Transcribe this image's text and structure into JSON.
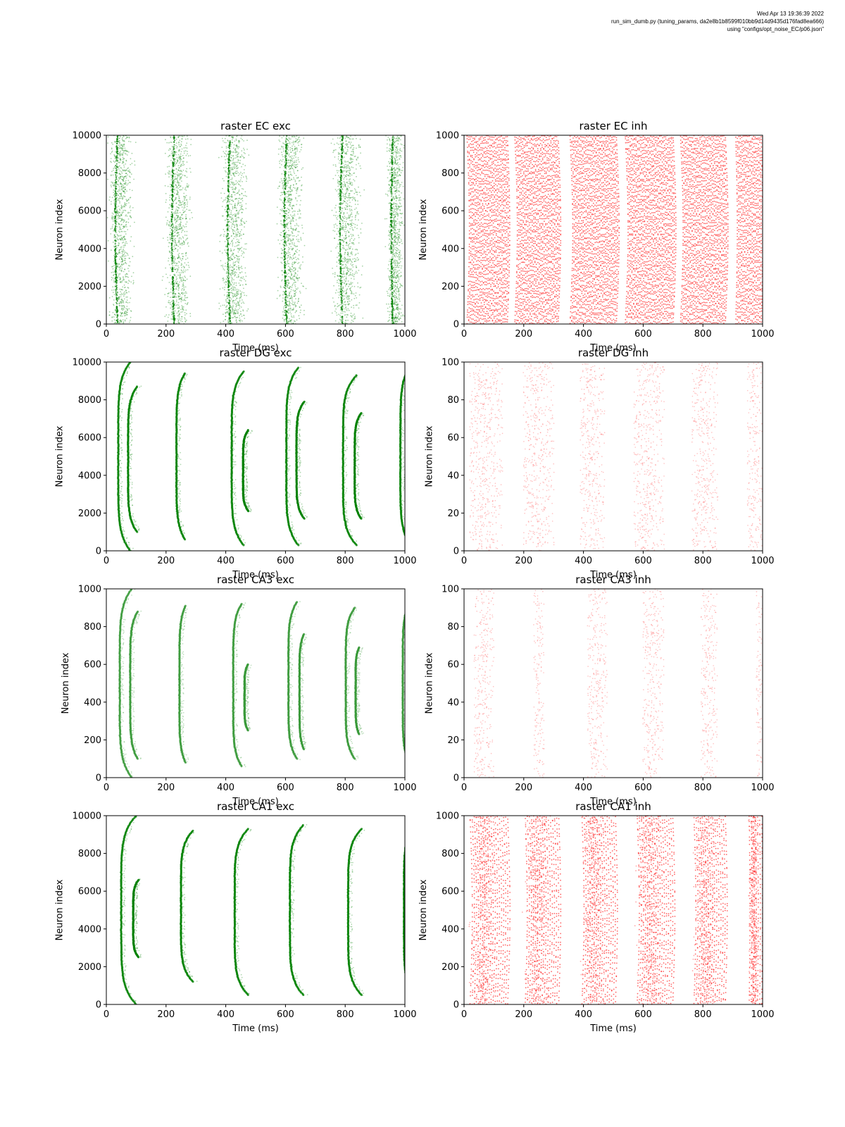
{
  "header": {
    "line1": "Wed Apr 13 19:36:39 2022",
    "line2": "run_sim_dumb.py (tuning_params, da2e8b1b8599f010bb9d14d9435d176fad8ea666)",
    "line3": "using \"configs/opt_noise_EC/p06.json\""
  },
  "chart_data": [
    {
      "type": "scatter",
      "title": "raster EC exc",
      "xlabel": "Time (ms)",
      "ylabel": "Neuron index",
      "xlim": [
        0,
        1000
      ],
      "ylim": [
        0,
        10000
      ],
      "xticks": [
        0,
        200,
        400,
        600,
        800,
        1000
      ],
      "yticks": [
        0,
        2000,
        4000,
        6000,
        8000,
        10000
      ],
      "color": "#008000",
      "pattern": "diffuse",
      "bursts": [
        [
          0,
          100
        ],
        [
          190,
          290
        ],
        [
          375,
          480
        ],
        [
          565,
          670
        ],
        [
          750,
          860
        ],
        [
          935,
          1000
        ]
      ]
    },
    {
      "type": "scatter",
      "title": "raster EC inh",
      "xlabel": "Time (ms)",
      "ylabel": "Neuron index",
      "xlim": [
        0,
        1000
      ],
      "ylim": [
        0,
        1000
      ],
      "xticks": [
        0,
        200,
        400,
        600,
        800,
        1000
      ],
      "yticks": [
        0,
        200,
        400,
        600,
        800,
        1000
      ],
      "color": "#ff0000",
      "pattern": "lines",
      "bursts": [
        [
          10,
          145
        ],
        [
          170,
          315
        ],
        [
          355,
          510
        ],
        [
          540,
          700
        ],
        [
          725,
          875
        ],
        [
          910,
          1000
        ]
      ]
    },
    {
      "type": "scatter",
      "title": "raster DG exc",
      "xlabel": "Time (ms)",
      "ylabel": "Neuron index",
      "xlim": [
        0,
        1000
      ],
      "ylim": [
        0,
        10000
      ],
      "xticks": [
        0,
        200,
        400,
        600,
        800,
        1000
      ],
      "yticks": [
        0,
        2000,
        4000,
        6000,
        8000,
        10000
      ],
      "color": "#008000",
      "pattern": "arcs",
      "arcs": [
        {
          "t": 40,
          "y0": 0,
          "y1": 10000,
          "w": 40
        },
        {
          "t": 73,
          "y0": 1000,
          "y1": 8700,
          "w": 30
        },
        {
          "t": 235,
          "y0": 600,
          "y1": 9400,
          "w": 28
        },
        {
          "t": 420,
          "y0": 300,
          "y1": 9500,
          "w": 40
        },
        {
          "t": 458,
          "y0": 2100,
          "y1": 6400,
          "w": 18
        },
        {
          "t": 603,
          "y0": 300,
          "y1": 9700,
          "w": 40
        },
        {
          "t": 637,
          "y0": 1700,
          "y1": 7900,
          "w": 26
        },
        {
          "t": 793,
          "y0": 300,
          "y1": 9300,
          "w": 45
        },
        {
          "t": 832,
          "y0": 1700,
          "y1": 7300,
          "w": 22
        },
        {
          "t": 985,
          "y0": 600,
          "y1": 9500,
          "w": 22
        }
      ]
    },
    {
      "type": "scatter",
      "title": "raster DG inh",
      "xlabel": "Time (ms)",
      "ylabel": "Neuron index",
      "xlim": [
        0,
        1000
      ],
      "ylim": [
        0,
        100
      ],
      "xticks": [
        0,
        200,
        400,
        600,
        800,
        1000
      ],
      "yticks": [
        0,
        20,
        40,
        60,
        80,
        100
      ],
      "color": "#ff8080",
      "pattern": "sparse",
      "bursts": [
        [
          20,
          130
        ],
        [
          200,
          300
        ],
        [
          390,
          470
        ],
        [
          570,
          670
        ],
        [
          765,
          850
        ],
        [
          950,
          1000
        ]
      ]
    },
    {
      "type": "scatter",
      "title": "raster CA3 exc",
      "xlabel": "Time (ms)",
      "ylabel": "Neuron index",
      "xlim": [
        0,
        1000
      ],
      "ylim": [
        0,
        1000
      ],
      "xticks": [
        0,
        200,
        400,
        600,
        800,
        1000
      ],
      "yticks": [
        0,
        200,
        400,
        600,
        800,
        1000
      ],
      "color": "#3a9a3a",
      "pattern": "arcs",
      "arcs": [
        {
          "t": 45,
          "y0": 0,
          "y1": 1000,
          "w": 40
        },
        {
          "t": 80,
          "y0": 100,
          "y1": 880,
          "w": 25
        },
        {
          "t": 245,
          "y0": 80,
          "y1": 910,
          "w": 20
        },
        {
          "t": 425,
          "y0": 60,
          "y1": 920,
          "w": 28
        },
        {
          "t": 463,
          "y0": 250,
          "y1": 600,
          "w": 12
        },
        {
          "t": 610,
          "y0": 100,
          "y1": 930,
          "w": 28
        },
        {
          "t": 647,
          "y0": 150,
          "y1": 760,
          "w": 15
        },
        {
          "t": 802,
          "y0": 100,
          "y1": 900,
          "w": 30
        },
        {
          "t": 835,
          "y0": 230,
          "y1": 690,
          "w": 12
        },
        {
          "t": 993,
          "y0": 100,
          "y1": 900,
          "w": 15
        }
      ]
    },
    {
      "type": "scatter",
      "title": "raster CA3 inh",
      "xlabel": "Time (ms)",
      "ylabel": "Neuron index",
      "xlim": [
        0,
        1000
      ],
      "ylim": [
        0,
        100
      ],
      "xticks": [
        0,
        200,
        400,
        600,
        800,
        1000
      ],
      "yticks": [
        0,
        20,
        40,
        60,
        80,
        100
      ],
      "color": "#ff8080",
      "pattern": "sparse",
      "bursts": [
        [
          35,
          100
        ],
        [
          235,
          270
        ],
        [
          415,
          480
        ],
        [
          600,
          670
        ],
        [
          795,
          850
        ],
        [
          980,
          1000
        ]
      ]
    },
    {
      "type": "scatter",
      "title": "raster CA1 exc",
      "xlabel": "Time (ms)",
      "ylabel": "Neuron index",
      "xlim": [
        0,
        1000
      ],
      "ylim": [
        0,
        10000
      ],
      "xticks": [
        0,
        200,
        400,
        600,
        800,
        1000
      ],
      "yticks": [
        0,
        2000,
        4000,
        6000,
        8000,
        10000
      ],
      "color": "#008000",
      "pattern": "arcs",
      "arcs": [
        {
          "t": 50,
          "y0": 0,
          "y1": 10000,
          "w": 50
        },
        {
          "t": 90,
          "y0": 2500,
          "y1": 6600,
          "w": 18
        },
        {
          "t": 250,
          "y0": 1200,
          "y1": 9200,
          "w": 40
        },
        {
          "t": 430,
          "y0": 500,
          "y1": 9300,
          "w": 45
        },
        {
          "t": 615,
          "y0": 500,
          "y1": 9500,
          "w": 45
        },
        {
          "t": 810,
          "y0": 500,
          "y1": 9300,
          "w": 45
        },
        {
          "t": 997,
          "y0": 800,
          "y1": 9200,
          "w": 20
        }
      ]
    },
    {
      "type": "scatter",
      "title": "raster CA1 inh",
      "xlabel": "Time (ms)",
      "ylabel": "Neuron index",
      "xlim": [
        0,
        1000
      ],
      "ylim": [
        0,
        1000
      ],
      "xticks": [
        0,
        200,
        400,
        600,
        800,
        1000
      ],
      "yticks": [
        0,
        200,
        400,
        600,
        800,
        1000
      ],
      "color": "#ff0000",
      "pattern": "mixed",
      "bursts": [
        [
          20,
          150
        ],
        [
          205,
          320
        ],
        [
          395,
          510
        ],
        [
          580,
          700
        ],
        [
          770,
          880
        ],
        [
          955,
          1000
        ]
      ]
    }
  ]
}
